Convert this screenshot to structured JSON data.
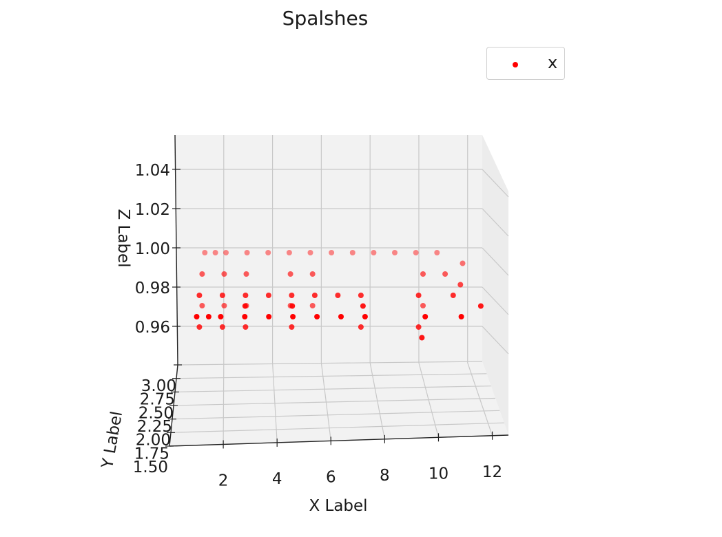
{
  "chart_data": {
    "type": "scatter",
    "title": "Spalshes",
    "xlabel": "X Label",
    "ylabel": "Y Label",
    "zlabel": "Z Label",
    "xlim": [
      0,
      12.6
    ],
    "ylim": [
      1.5,
      3.0
    ],
    "zlim": [
      0.94,
      1.06
    ],
    "x_ticks": [
      "2",
      "4",
      "6",
      "8",
      "10",
      "12"
    ],
    "y_ticks": [
      "1.50",
      "1.75",
      "2.00",
      "2.25",
      "2.50",
      "2.75",
      "3.00"
    ],
    "z_ticks": [
      "0.96",
      "0.98",
      "1.00",
      "1.02",
      "1.04"
    ],
    "grid": true,
    "legend_position": "top-right",
    "series": [
      {
        "name": "x",
        "color": "#ff0000",
        "points": [
          [
            0.5,
            3.0,
            1.0
          ],
          [
            1.0,
            3.0,
            1.0
          ],
          [
            1.5,
            3.0,
            1.0
          ],
          [
            0.5,
            2.5,
            1.0
          ],
          [
            1.5,
            2.5,
            1.0
          ],
          [
            0.5,
            2.0,
            1.0
          ],
          [
            1.5,
            2.0,
            1.0
          ],
          [
            0.5,
            1.5,
            1.0
          ],
          [
            1.0,
            1.5,
            1.0
          ],
          [
            1.5,
            1.5,
            1.0
          ],
          [
            0.5,
            2.0,
            0.98
          ],
          [
            1.5,
            2.0,
            0.98
          ],
          [
            0.5,
            2.5,
            0.98
          ],
          [
            1.5,
            2.5,
            0.98
          ],
          [
            2.5,
            3.0,
            1.0
          ],
          [
            3.5,
            3.0,
            1.0
          ],
          [
            4.5,
            3.0,
            1.0
          ],
          [
            2.5,
            2.5,
            1.0
          ],
          [
            4.5,
            2.5,
            1.0
          ],
          [
            2.5,
            2.0,
            1.0
          ],
          [
            3.5,
            2.0,
            1.0
          ],
          [
            4.5,
            2.0,
            1.0
          ],
          [
            4.5,
            1.5,
            1.0
          ],
          [
            2.5,
            1.5,
            1.0
          ],
          [
            3.5,
            1.5,
            1.0
          ],
          [
            4.5,
            2.5,
            0.98
          ],
          [
            2.5,
            2.5,
            0.98
          ],
          [
            4.5,
            2.0,
            0.98
          ],
          [
            2.5,
            2.0,
            0.98
          ],
          [
            4.5,
            1.75,
            1.0
          ],
          [
            2.5,
            1.75,
            1.0
          ],
          [
            5.5,
            3.0,
            1.0
          ],
          [
            6.5,
            3.0,
            1.0
          ],
          [
            7.5,
            3.0,
            1.0
          ],
          [
            5.5,
            2.5,
            1.0
          ],
          [
            5.5,
            2.0,
            1.0
          ],
          [
            6.5,
            2.0,
            1.0
          ],
          [
            7.5,
            2.0,
            1.0
          ],
          [
            7.5,
            1.75,
            1.0
          ],
          [
            5.5,
            1.5,
            1.0
          ],
          [
            6.5,
            1.5,
            1.0
          ],
          [
            7.5,
            1.5,
            1.0
          ],
          [
            5.5,
            2.5,
            0.98
          ],
          [
            7.5,
            2.0,
            0.98
          ],
          [
            8.5,
            3.0,
            1.0
          ],
          [
            9.5,
            3.0,
            1.0
          ],
          [
            10.5,
            3.0,
            1.0
          ],
          [
            10.5,
            2.5,
            1.0
          ],
          [
            10.0,
            2.0,
            1.0
          ],
          [
            10.0,
            1.5,
            1.0
          ],
          [
            10.5,
            2.5,
            0.98
          ],
          [
            10.0,
            2.0,
            0.98
          ],
          [
            10.0,
            1.75,
            0.98
          ],
          [
            11.5,
            3.0,
            1.0
          ],
          [
            11.5,
            2.5,
            1.0
          ],
          [
            11.5,
            2.0,
            1.0
          ],
          [
            11.5,
            1.5,
            1.0
          ],
          [
            12.0,
            2.25,
            1.0
          ],
          [
            12.5,
            2.75,
            1.0
          ],
          [
            12.5,
            1.75,
            1.0
          ]
        ]
      }
    ]
  }
}
